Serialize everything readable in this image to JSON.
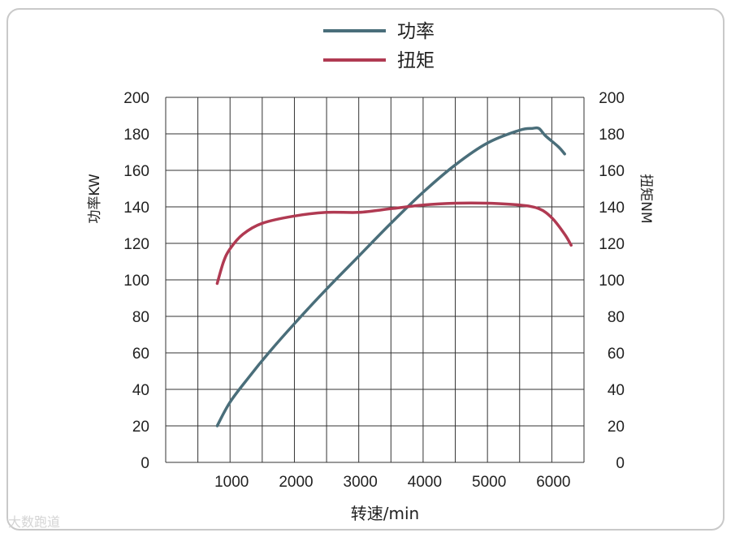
{
  "chart_data": {
    "type": "line",
    "xlabel": "转速/min",
    "y_left_label": "功率KW",
    "y_right_label": "扭矩NM",
    "x_ticks": [
      1000,
      2000,
      3000,
      4000,
      5000,
      6000
    ],
    "y_ticks": [
      0,
      20,
      40,
      60,
      80,
      100,
      120,
      140,
      160,
      180,
      200
    ],
    "xlim": [
      0,
      6500
    ],
    "ylim": [
      0,
      200
    ],
    "grid": true,
    "legend_placement": "top-center",
    "series": [
      {
        "name": "功率",
        "color": "#4a6e7a",
        "x": [
          800,
          1000,
          1300,
          1600,
          2000,
          2500,
          3000,
          3500,
          4000,
          4500,
          5000,
          5500,
          5700,
          5800,
          5900,
          6100,
          6200
        ],
        "values": [
          20,
          33,
          47,
          60,
          76,
          95,
          113,
          131,
          148,
          163,
          175,
          182,
          183,
          183,
          179,
          173,
          169
        ]
      },
      {
        "name": "扭矩",
        "color": "#b03a52",
        "x": [
          800,
          900,
          1000,
          1200,
          1500,
          2000,
          2500,
          3000,
          3500,
          4000,
          4500,
          5000,
          5500,
          5800,
          6000,
          6200,
          6300
        ],
        "values": [
          98,
          110,
          117,
          125,
          131,
          135,
          137,
          137,
          139,
          141,
          142,
          142,
          141,
          139,
          134,
          125,
          119
        ]
      }
    ]
  },
  "watermark": "大数跑道"
}
